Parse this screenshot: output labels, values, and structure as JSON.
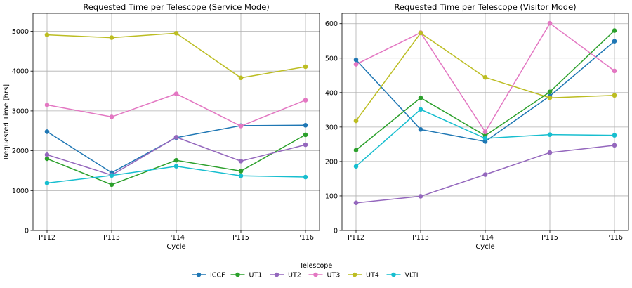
{
  "chart_data": [
    {
      "type": "line",
      "title": "Requested Time per Telescope (Service Mode)",
      "xlabel": "Cycle",
      "ylabel": "Requested Time [hrs]",
      "categories": [
        "P112",
        "P113",
        "P114",
        "P115",
        "P116"
      ],
      "ylim": [
        0,
        5450
      ],
      "yticks": [
        0,
        1000,
        2000,
        3000,
        4000,
        5000
      ],
      "grid": true,
      "series": [
        {
          "name": "ICCF",
          "color": "#1f77b4",
          "values": [
            2480,
            1450,
            2330,
            2630,
            2640
          ]
        },
        {
          "name": "UT1",
          "color": "#2ca02c",
          "values": [
            1800,
            1150,
            1760,
            1490,
            2400
          ]
        },
        {
          "name": "UT2",
          "color": "#9467bd",
          "values": [
            1900,
            1390,
            2340,
            1740,
            2150
          ]
        },
        {
          "name": "UT3",
          "color": "#e377c2",
          "values": [
            3150,
            2850,
            3430,
            2620,
            3270
          ]
        },
        {
          "name": "UT4",
          "color": "#bcbd22",
          "values": [
            4910,
            4840,
            4950,
            3830,
            4110
          ]
        },
        {
          "name": "VLTI",
          "color": "#17becf",
          "values": [
            1190,
            1380,
            1610,
            1370,
            1340
          ]
        }
      ]
    },
    {
      "type": "line",
      "title": "Requested Time per Telescope (Visitor Mode)",
      "xlabel": "Cycle",
      "ylabel": "",
      "categories": [
        "P112",
        "P113",
        "P114",
        "P115",
        "P116"
      ],
      "ylim": [
        0,
        630
      ],
      "yticks": [
        0,
        100,
        200,
        300,
        400,
        500,
        600
      ],
      "grid": true,
      "series": [
        {
          "name": "ICCF",
          "color": "#1f77b4",
          "values": [
            495,
            293,
            258,
            390,
            549
          ]
        },
        {
          "name": "UT1",
          "color": "#2ca02c",
          "values": [
            233,
            385,
            275,
            402,
            580
          ]
        },
        {
          "name": "UT2",
          "color": "#9467bd",
          "values": [
            80,
            99,
            162,
            226,
            247
          ]
        },
        {
          "name": "UT3",
          "color": "#e377c2",
          "values": [
            482,
            574,
            286,
            601,
            463
          ]
        },
        {
          "name": "UT4",
          "color": "#bcbd22",
          "values": [
            318,
            573,
            444,
            385,
            392
          ]
        },
        {
          "name": "VLTI",
          "color": "#17becf",
          "values": [
            186,
            351,
            267,
            278,
            276
          ]
        }
      ]
    }
  ],
  "legend": {
    "title": "Telescope",
    "position": "bottom-center",
    "entries": [
      "ICCF",
      "UT1",
      "UT2",
      "UT3",
      "UT4",
      "VLTI"
    ]
  }
}
